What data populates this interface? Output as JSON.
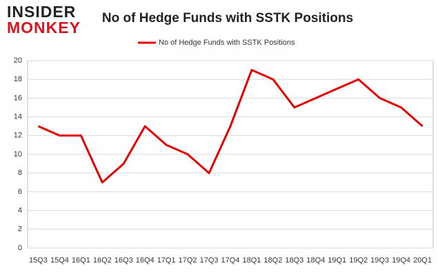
{
  "logo": {
    "line1": "INSIDER",
    "line2": "MONKEY"
  },
  "chart_data": {
    "type": "line",
    "title": "No of Hedge Funds with SSTK Positions",
    "categories": [
      "15Q3",
      "15Q4",
      "16Q1",
      "16Q2",
      "16Q3",
      "16Q4",
      "17Q1",
      "17Q2",
      "17Q3",
      "17Q4",
      "18Q1",
      "18Q2",
      "18Q3",
      "18Q4",
      "19Q1",
      "19Q2",
      "19Q3",
      "19Q4",
      "20Q1"
    ],
    "series": [
      {
        "name": "No of Hedge Funds with SSTK Positions",
        "color": "#e50000",
        "values": [
          13,
          12,
          12,
          7,
          9,
          13,
          11,
          10,
          8,
          13,
          19,
          18,
          15,
          16,
          17,
          18,
          16,
          15,
          13
        ]
      }
    ],
    "ylim": [
      0,
      20
    ],
    "yticks": [
      0,
      2,
      4,
      6,
      8,
      10,
      12,
      14,
      16,
      18,
      20
    ],
    "grid": true,
    "legend": "top"
  }
}
